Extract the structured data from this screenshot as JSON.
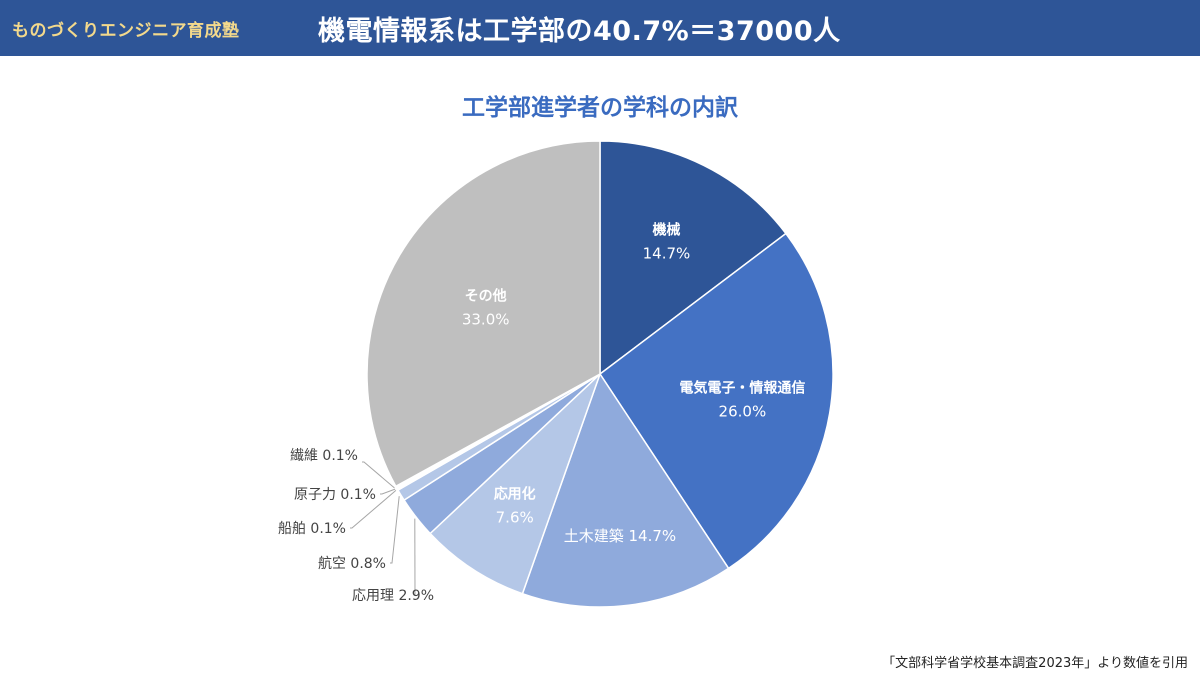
{
  "header": {
    "brand": "ものづくりエンジニア育成塾",
    "headline": "機電情報系は工学部の40.7%＝37000人"
  },
  "footer": {
    "source": "「文部科学省学校基本調査2023年」より数値を引用"
  },
  "colors": {
    "header_bg": "#2E5597",
    "brand_text": "#F3D98C",
    "title_text": "#3A6BC0"
  },
  "chart_data": {
    "type": "pie",
    "title": "工学部進学者の学科の内訳",
    "unit": "%",
    "slices": [
      {
        "label": "機械",
        "value": 14.7,
        "value_label": "14.7%",
        "color": "#2E5597",
        "text_color": "#ffffff",
        "label_style": "inside-two-line"
      },
      {
        "label": "電気電子・情報通信",
        "value": 26.0,
        "value_label": "26.0%",
        "color": "#4472C4",
        "text_color": "#ffffff",
        "label_style": "inside-two-line"
      },
      {
        "label": "土木建築",
        "value": 14.7,
        "value_label": "14.7%",
        "color": "#8FAADC",
        "text_color": "#ffffff",
        "label_style": "inside-one-line"
      },
      {
        "label": "応用化",
        "value": 7.6,
        "value_label": "7.6%",
        "color": "#B4C7E7",
        "text_color": "#ffffff",
        "label_style": "inside-two-line"
      },
      {
        "label": "応用理",
        "value": 2.9,
        "value_label": "2.9%",
        "color": "#8FAADC",
        "text_color": "#444444",
        "label_style": "outside"
      },
      {
        "label": "航空",
        "value": 0.8,
        "value_label": "0.8%",
        "color": "#B4C7E7",
        "text_color": "#444444",
        "label_style": "outside"
      },
      {
        "label": "船舶",
        "value": 0.1,
        "value_label": "0.1%",
        "color": "#8FAADC",
        "text_color": "#444444",
        "label_style": "outside"
      },
      {
        "label": "原子力",
        "value": 0.1,
        "value_label": "0.1%",
        "color": "#B4C7E7",
        "text_color": "#444444",
        "label_style": "outside"
      },
      {
        "label": "繊維",
        "value": 0.1,
        "value_label": "0.1%",
        "color": "#8FAADC",
        "text_color": "#444444",
        "label_style": "outside"
      },
      {
        "label": "その他",
        "value": 33.0,
        "value_label": "33.0%",
        "color": "#BFBFBF",
        "text_color": "#ffffff",
        "label_style": "inside-two-line"
      }
    ]
  }
}
